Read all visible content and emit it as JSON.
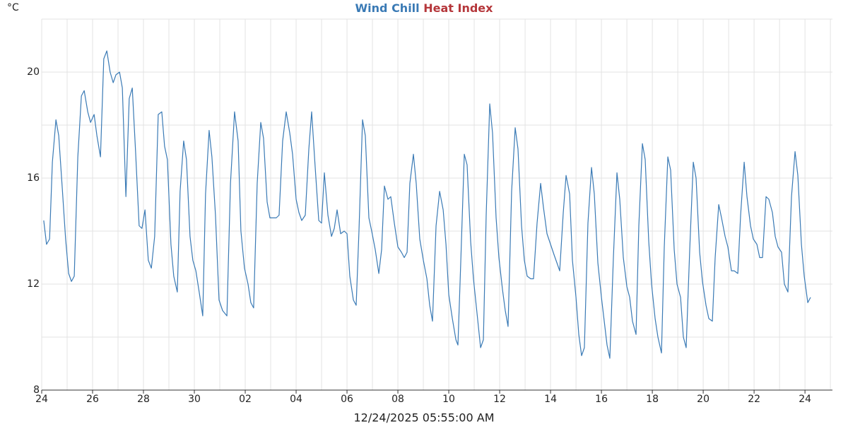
{
  "chart_data": {
    "type": "line",
    "y_unit": "°C",
    "xlabel": "12/24/2025 05:55:00 AM",
    "xlim": [
      0,
      31.08
    ],
    "xticks": [
      {
        "value": 0,
        "label": "24"
      },
      {
        "value": 2,
        "label": "26"
      },
      {
        "value": 4,
        "label": "28"
      },
      {
        "value": 6,
        "label": "30"
      },
      {
        "value": 8,
        "label": "02"
      },
      {
        "value": 10,
        "label": "04"
      },
      {
        "value": 12,
        "label": "06"
      },
      {
        "value": 14,
        "label": "08"
      },
      {
        "value": 16,
        "label": "10"
      },
      {
        "value": 18,
        "label": "12"
      },
      {
        "value": 20,
        "label": "14"
      },
      {
        "value": 22,
        "label": "16"
      },
      {
        "value": 24,
        "label": "18"
      },
      {
        "value": 26,
        "label": "20"
      },
      {
        "value": 28,
        "label": "22"
      },
      {
        "value": 30,
        "label": "24"
      }
    ],
    "xgrid": [
      0,
      1,
      2,
      3,
      4,
      5,
      6,
      7,
      8,
      9,
      10,
      11,
      12,
      13,
      14,
      15,
      16,
      17,
      18,
      19,
      20,
      21,
      22,
      23,
      24,
      25,
      26,
      27,
      28,
      29,
      30,
      31
    ],
    "ylim": [
      8,
      22
    ],
    "yticks": [
      8,
      12,
      16,
      20
    ],
    "ygrid": [
      8,
      10,
      12,
      14,
      16,
      18,
      20,
      22
    ],
    "grid": true,
    "x": [
      0.08,
      0.19,
      0.31,
      0.42,
      0.56,
      0.67,
      0.81,
      0.94,
      1.06,
      1.17,
      1.28,
      1.42,
      1.56,
      1.67,
      1.81,
      1.92,
      2.06,
      2.17,
      2.31,
      2.44,
      2.56,
      2.69,
      2.81,
      2.92,
      3.06,
      3.17,
      3.31,
      3.44,
      3.56,
      3.69,
      3.83,
      3.94,
      4.06,
      4.19,
      4.31,
      4.44,
      4.58,
      4.72,
      4.83,
      4.94,
      5.08,
      5.19,
      5.33,
      5.44,
      5.58,
      5.69,
      5.83,
      5.94,
      6.06,
      6.19,
      6.33,
      6.44,
      6.58,
      6.69,
      6.83,
      6.97,
      7.11,
      7.28,
      7.42,
      7.58,
      7.72,
      7.83,
      7.97,
      8.11,
      8.22,
      8.33,
      8.47,
      8.61,
      8.72,
      8.86,
      8.97,
      9.11,
      9.22,
      9.33,
      9.47,
      9.61,
      9.75,
      9.86,
      10.0,
      10.11,
      10.22,
      10.36,
      10.5,
      10.61,
      10.75,
      10.89,
      11.0,
      11.11,
      11.25,
      11.39,
      11.5,
      11.61,
      11.75,
      11.89,
      12.0,
      12.11,
      12.25,
      12.36,
      12.47,
      12.61,
      12.72,
      12.86,
      12.97,
      13.11,
      13.25,
      13.36,
      13.47,
      13.61,
      13.72,
      13.86,
      14.0,
      14.14,
      14.25,
      14.36,
      14.47,
      14.61,
      14.72,
      14.86,
      15.0,
      15.14,
      15.25,
      15.36,
      15.5,
      15.64,
      15.78,
      15.89,
      16.0,
      16.14,
      16.28,
      16.36,
      16.47,
      16.61,
      16.72,
      16.86,
      16.97,
      17.11,
      17.25,
      17.36,
      17.47,
      17.61,
      17.72,
      17.86,
      17.97,
      18.11,
      18.22,
      18.33,
      18.47,
      18.61,
      18.72,
      18.86,
      18.97,
      19.08,
      19.22,
      19.33,
      19.47,
      19.61,
      19.72,
      19.86,
      20.0,
      20.14,
      20.25,
      20.36,
      20.5,
      20.61,
      20.75,
      20.86,
      21.0,
      21.11,
      21.22,
      21.33,
      21.47,
      21.61,
      21.72,
      21.86,
      22.0,
      22.11,
      22.22,
      22.33,
      22.47,
      22.61,
      22.72,
      22.86,
      23.0,
      23.11,
      23.22,
      23.36,
      23.47,
      23.61,
      23.72,
      23.86,
      23.97,
      24.11,
      24.22,
      24.36,
      24.47,
      24.61,
      24.72,
      24.86,
      24.97,
      25.11,
      25.22,
      25.33,
      25.47,
      25.61,
      25.72,
      25.86,
      25.97,
      26.11,
      26.22,
      26.36,
      26.47,
      26.61,
      26.72,
      26.86,
      26.97,
      27.11,
      27.22,
      27.36,
      27.47,
      27.61,
      27.72,
      27.86,
      27.97,
      28.11,
      28.22,
      28.33,
      28.47,
      28.58,
      28.72,
      28.83,
      28.94,
      29.08,
      29.19,
      29.33,
      29.47,
      29.61,
      29.72,
      29.86,
      29.97,
      30.11,
      30.22
    ],
    "series": [
      {
        "name": "Wind Chill",
        "color": "#3a7ab5",
        "values": [
          14.4,
          13.5,
          13.7,
          16.6,
          18.2,
          17.6,
          15.6,
          13.7,
          12.4,
          12.1,
          12.3,
          16.8,
          19.1,
          19.3,
          18.5,
          18.1,
          18.4,
          17.6,
          16.8,
          20.5,
          20.8,
          20.0,
          19.6,
          19.9,
          20.0,
          19.4,
          15.3,
          19.0,
          19.4,
          17.0,
          14.2,
          14.1,
          14.8,
          12.9,
          12.6,
          13.8,
          18.4,
          18.5,
          17.2,
          16.7,
          13.5,
          12.3,
          11.7,
          15.5,
          17.4,
          16.7,
          13.8,
          12.9,
          12.5,
          11.7,
          10.8,
          15.4,
          17.8,
          16.8,
          14.6,
          11.4,
          11.0,
          10.8,
          15.8,
          18.5,
          17.4,
          14.0,
          12.6,
          12.0,
          11.3,
          11.1,
          15.8,
          18.1,
          17.5,
          15.1,
          14.5,
          14.5,
          14.5,
          14.6,
          17.4,
          18.5,
          17.7,
          16.9,
          15.2,
          14.7,
          14.4,
          14.6,
          17.1,
          18.5,
          16.4,
          14.4,
          14.3,
          16.2,
          14.6,
          13.8,
          14.1,
          14.8,
          13.9,
          14.0,
          13.9,
          12.3,
          11.4,
          11.2,
          14.0,
          18.2,
          17.6,
          14.5,
          14.0,
          13.3,
          12.4,
          13.3,
          15.7,
          15.2,
          15.3,
          14.3,
          13.4,
          13.2,
          13.0,
          13.2,
          15.8,
          16.9,
          15.8,
          13.7,
          12.9,
          12.2,
          11.2,
          10.6,
          14.2,
          15.5,
          14.8,
          13.5,
          11.6,
          10.7,
          9.9,
          9.7,
          12.8,
          16.9,
          16.5,
          13.6,
          12.2,
          10.9,
          9.6,
          9.9,
          14.6,
          18.8,
          17.7,
          14.5,
          13.0,
          11.8,
          11.0,
          10.4,
          15.5,
          17.9,
          17.1,
          14.2,
          12.9,
          12.3,
          12.2,
          12.2,
          14.3,
          15.8,
          14.9,
          13.9,
          13.5,
          13.1,
          12.8,
          12.5,
          14.7,
          16.1,
          15.4,
          12.9,
          11.5,
          10.1,
          9.3,
          9.6,
          14.3,
          16.4,
          15.4,
          12.8,
          11.5,
          10.6,
          9.7,
          9.2,
          13.0,
          16.2,
          15.2,
          13.0,
          11.9,
          11.5,
          10.6,
          10.1,
          14.2,
          17.3,
          16.7,
          13.6,
          12.0,
          10.7,
          10.0,
          9.4,
          13.4,
          16.8,
          16.3,
          13.3,
          12.0,
          11.5,
          10.0,
          9.6,
          13.3,
          16.6,
          16.0,
          13.2,
          12.1,
          11.2,
          10.7,
          10.6,
          13.0,
          15.0,
          14.5,
          13.8,
          13.4,
          12.5,
          12.5,
          12.4,
          14.6,
          16.6,
          15.3,
          14.2,
          13.7,
          13.5,
          13.0,
          13.0,
          15.3,
          15.2,
          14.7,
          13.8,
          13.4,
          13.2,
          12.0,
          11.7,
          15.3,
          17.0,
          16.1,
          13.5,
          12.3,
          11.3,
          11.5
        ]
      },
      {
        "name": "Heat Index",
        "color": "#b5373b",
        "values": [
          null,
          null,
          null,
          null,
          null,
          null,
          null,
          null,
          null,
          null,
          null,
          null,
          null,
          null,
          null,
          null,
          null,
          null,
          null,
          null,
          null,
          null,
          null,
          null,
          null,
          null,
          null,
          null,
          null,
          null,
          null,
          null,
          null,
          null,
          null,
          null,
          null,
          null,
          null,
          null,
          null,
          null,
          null,
          null,
          null,
          null,
          null,
          null,
          null,
          null,
          null,
          null,
          null,
          null,
          null,
          null,
          null,
          null,
          null,
          null,
          null,
          null,
          null,
          null,
          null,
          null,
          null,
          null,
          null,
          null,
          null,
          null,
          null,
          null,
          null,
          null,
          null,
          null,
          null,
          null,
          null,
          null,
          null,
          null,
          null,
          null,
          null,
          null,
          null,
          null,
          null,
          null,
          null,
          null,
          null,
          null,
          null,
          null,
          null,
          null,
          null,
          null,
          null,
          null,
          null,
          null,
          null,
          null,
          null,
          null,
          null,
          null,
          null,
          null,
          null,
          null,
          null,
          null,
          null,
          null,
          null,
          null,
          null,
          null,
          null,
          null,
          null,
          null,
          null,
          null,
          null,
          null,
          null,
          null,
          null,
          null,
          null,
          null,
          null,
          null,
          null,
          null,
          null,
          null,
          null,
          null,
          null,
          null,
          null,
          null,
          null,
          null,
          null,
          null,
          null,
          null,
          null,
          null,
          null,
          null,
          null,
          null,
          null,
          null,
          null,
          null,
          null,
          null,
          null,
          null,
          null,
          null,
          null,
          null,
          null,
          null,
          null,
          null,
          null,
          null,
          null,
          null,
          null,
          null,
          null,
          null,
          null,
          null,
          null,
          null,
          null,
          null,
          null,
          null,
          null,
          null,
          null,
          null,
          null,
          null,
          null,
          null,
          null,
          null,
          null,
          null,
          null,
          null,
          null,
          null,
          null,
          null,
          null,
          null,
          null,
          null,
          null,
          null,
          null,
          null,
          null,
          null,
          null,
          null,
          null,
          null,
          null,
          null,
          null,
          null,
          null,
          null,
          null,
          null,
          null,
          null,
          null,
          null,
          null,
          null,
          null
        ]
      }
    ]
  }
}
